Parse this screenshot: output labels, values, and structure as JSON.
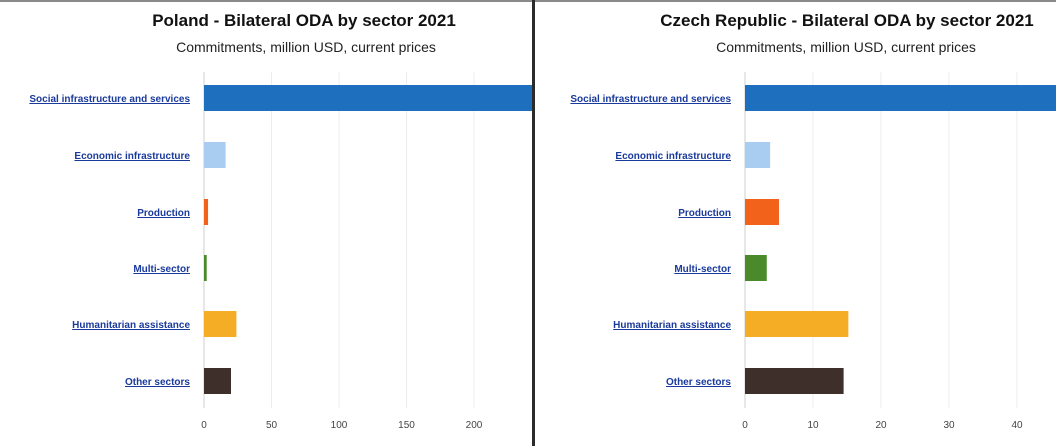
{
  "chart_data": [
    {
      "type": "bar",
      "orientation": "horizontal",
      "title": "Poland - Bilateral ODA by sector 2021",
      "subtitle": "Commitments, million USD, current prices",
      "categories": [
        "Social infrastructure and services",
        "Economic infrastructure",
        "Production",
        "Multi-sector",
        "Humanitarian assistance",
        "Other sectors"
      ],
      "values": [
        245,
        16,
        3,
        2,
        24,
        20
      ],
      "colors": [
        "#1f6fbf",
        "#a9cdf0",
        "#f2621a",
        "#4a8a2a",
        "#f5ad26",
        "#3e2f2a"
      ],
      "xticks": [
        "0",
        "50",
        "100",
        "150",
        "200"
      ],
      "xlim": [
        0,
        240
      ],
      "grid": true
    },
    {
      "type": "bar",
      "orientation": "horizontal",
      "title": "Czech Republic - Bilateral ODA by sector 2021",
      "subtitle": "Commitments, million USD, current prices",
      "categories": [
        "Social infrastructure and services",
        "Economic infrastructure",
        "Production",
        "Multi-sector",
        "Humanitarian assistance",
        "Other sectors"
      ],
      "values": [
        46,
        3.7,
        5,
        3.2,
        15.2,
        14.5
      ],
      "colors": [
        "#1f6fbf",
        "#a9cdf0",
        "#f2621a",
        "#4a8a2a",
        "#f5ad26",
        "#3e2f2a"
      ],
      "xticks": [
        "0",
        "10",
        "20",
        "30",
        "40"
      ],
      "xlim": [
        0,
        46
      ],
      "grid": true
    }
  ]
}
